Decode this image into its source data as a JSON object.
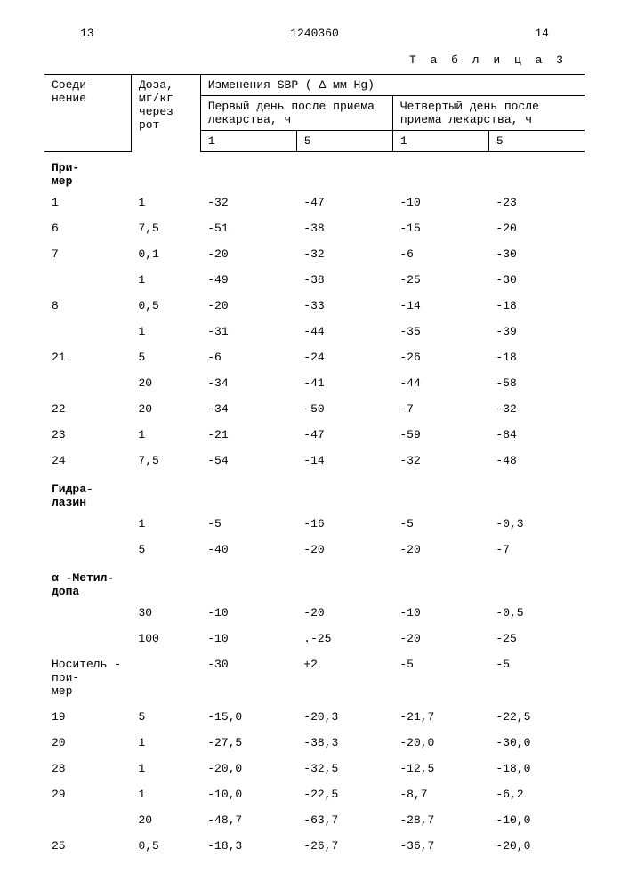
{
  "page": {
    "left_num": "13",
    "doc_num": "1240360",
    "right_num": "14"
  },
  "caption": "Т а б л и ц а  3",
  "headers": {
    "compound": "Соеди-\nнение",
    "dose": "Доза,\nмг/кг\nчерез\nрот",
    "sbp": "Изменения SBP ( Δ мм Hg)",
    "day1": "Первый день после приема лекарства, ч",
    "day4": "Четвертый день после приема лекарства, ч",
    "h1": "1",
    "h5": "5"
  },
  "sections": {
    "primer": "При-\nмер",
    "hydralazine": "Гидра-\nлазин",
    "methyldopa": "α -Метил-\nдопа",
    "carrier": "Носитель -\nпри-\nмер"
  },
  "rows": [
    {
      "c": "1",
      "d": "1",
      "v1": "-32",
      "v2": "-47",
      "v3": "-10",
      "v4": "-23"
    },
    {
      "c": "6",
      "d": "7,5",
      "v1": "-51",
      "v2": "-38",
      "v3": "-15",
      "v4": "-20"
    },
    {
      "c": "7",
      "d": "0,1",
      "v1": "-20",
      "v2": "-32",
      "v3": "-6",
      "v4": "-30"
    },
    {
      "c": "",
      "d": "1",
      "v1": "-49",
      "v2": "-38",
      "v3": "-25",
      "v4": "-30"
    },
    {
      "c": "8",
      "d": "0,5",
      "v1": "-20",
      "v2": "-33",
      "v3": "-14",
      "v4": "-18"
    },
    {
      "c": "",
      "d": "1",
      "v1": "-31",
      "v2": "-44",
      "v3": "-35",
      "v4": "-39"
    },
    {
      "c": "21",
      "d": "5",
      "v1": "-6",
      "v2": "-24",
      "v3": "-26",
      "v4": "-18"
    },
    {
      "c": "",
      "d": "20",
      "v1": "-34",
      "v2": "-41",
      "v3": "-44",
      "v4": "-58"
    },
    {
      "c": "22",
      "d": "20",
      "v1": "-34",
      "v2": "-50",
      "v3": "-7",
      "v4": "-32"
    },
    {
      "c": "23",
      "d": "1",
      "v1": "-21",
      "v2": "-47",
      "v3": "-59",
      "v4": "-84"
    },
    {
      "c": "24",
      "d": "7,5",
      "v1": "-54",
      "v2": "-14",
      "v3": "-32",
      "v4": "-48"
    }
  ],
  "rows_hydra": [
    {
      "c": "",
      "d": "1",
      "v1": "-5",
      "v2": "-16",
      "v3": "-5",
      "v4": "-0,3"
    },
    {
      "c": "",
      "d": "5",
      "v1": "-40",
      "v2": "-20",
      "v3": "-20",
      "v4": "-7"
    }
  ],
  "rows_methyl": [
    {
      "c": "",
      "d": "30",
      "v1": "-10",
      "v2": "-20",
      "v3": "-10",
      "v4": "-0,5"
    },
    {
      "c": "",
      "d": "100",
      "v1": "-10",
      "v2": ".-25",
      "v3": "-20",
      "v4": "-25"
    }
  ],
  "rows_carrier_first": {
    "c": "",
    "d": "",
    "v1": "-30",
    "v2": "+2",
    "v3": "-5",
    "v4": "-5"
  },
  "rows_carrier": [
    {
      "c": "19",
      "d": "5",
      "v1": "-15,0",
      "v2": "-20,3",
      "v3": "-21,7",
      "v4": "-22,5"
    },
    {
      "c": "20",
      "d": "1",
      "v1": "-27,5",
      "v2": "-38,3",
      "v3": "-20,0",
      "v4": "-30,0"
    },
    {
      "c": "28",
      "d": "1",
      "v1": "-20,0",
      "v2": "-32,5",
      "v3": "-12,5",
      "v4": "-18,0"
    },
    {
      "c": "29",
      "d": "1",
      "v1": "-10,0",
      "v2": "-22,5",
      "v3": "-8,7",
      "v4": "-6,2"
    },
    {
      "c": "",
      "d": "20",
      "v1": "-48,7",
      "v2": "-63,7",
      "v3": "-28,7",
      "v4": "-10,0"
    },
    {
      "c": "25",
      "d": "0,5",
      "v1": "-18,3",
      "v2": "-26,7",
      "v3": "-36,7",
      "v4": "-20,0"
    }
  ]
}
